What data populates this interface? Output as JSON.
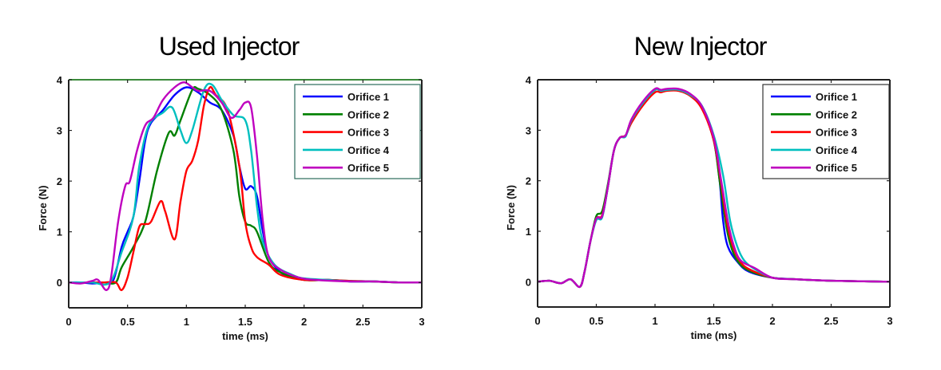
{
  "chart_data": [
    {
      "type": "line",
      "title": "Used Injector",
      "xlabel": "time (ms)",
      "ylabel": "Force (N)",
      "xlim": [
        0,
        3
      ],
      "ylim": [
        -0.5,
        4
      ],
      "xticks": [
        "0",
        "0.5",
        "1",
        "1.5",
        "2",
        "2.5",
        "3"
      ],
      "yticks": [
        "0",
        "1",
        "2",
        "3",
        "4"
      ],
      "grid": false,
      "legend_position": "upper right",
      "series": [
        {
          "name": "Orifice 1",
          "color": "#0000ff",
          "x": [
            0,
            0.1,
            0.2,
            0.3,
            0.38,
            0.45,
            0.5,
            0.55,
            0.6,
            0.65,
            0.7,
            0.8,
            0.9,
            1.0,
            1.1,
            1.2,
            1.3,
            1.4,
            1.45,
            1.5,
            1.55,
            1.6,
            1.65,
            1.7,
            1.8,
            1.9,
            2.0,
            2.2,
            2.4,
            2.6,
            2.8,
            3.0
          ],
          "y": [
            0,
            0,
            -0.02,
            0,
            0.05,
            0.7,
            1.0,
            1.3,
            2.0,
            2.8,
            3.15,
            3.4,
            3.7,
            3.85,
            3.75,
            3.55,
            3.4,
            2.9,
            2.3,
            1.85,
            1.9,
            1.7,
            1.0,
            0.5,
            0.2,
            0.1,
            0.05,
            0.05,
            0.02,
            0.02,
            0,
            0
          ]
        },
        {
          "name": "Orifice 2",
          "color": "#008000",
          "x": [
            0,
            0.1,
            0.2,
            0.3,
            0.4,
            0.45,
            0.55,
            0.65,
            0.75,
            0.85,
            0.9,
            0.95,
            1.05,
            1.1,
            1.2,
            1.3,
            1.4,
            1.45,
            1.5,
            1.55,
            1.6,
            1.7,
            1.8,
            2.0,
            2.2,
            2.4,
            2.6,
            2.8,
            3.0
          ],
          "y": [
            0,
            0,
            0,
            0,
            0,
            0.3,
            0.7,
            1.2,
            2.2,
            2.95,
            2.9,
            3.2,
            3.8,
            3.82,
            3.7,
            3.4,
            2.6,
            1.7,
            1.2,
            1.12,
            1.0,
            0.4,
            0.2,
            0.05,
            0.05,
            0.03,
            0.02,
            0,
            0
          ]
        },
        {
          "name": "Orifice 3",
          "color": "#ff0000",
          "x": [
            0,
            0.1,
            0.2,
            0.3,
            0.4,
            0.45,
            0.5,
            0.55,
            0.6,
            0.65,
            0.7,
            0.78,
            0.82,
            0.9,
            0.95,
            1.0,
            1.05,
            1.1,
            1.15,
            1.2,
            1.25,
            1.35,
            1.45,
            1.5,
            1.55,
            1.6,
            1.7,
            1.8,
            2.0,
            2.2,
            2.4,
            2.6,
            2.8,
            3.0
          ],
          "y": [
            0,
            0,
            0,
            0,
            0,
            -0.15,
            0.1,
            0.6,
            1.1,
            1.15,
            1.2,
            1.6,
            1.4,
            0.85,
            1.6,
            2.2,
            2.4,
            2.8,
            3.5,
            3.85,
            3.7,
            3.4,
            2.3,
            1.2,
            0.7,
            0.5,
            0.35,
            0.15,
            0.05,
            0.05,
            0.03,
            0.02,
            0,
            0
          ]
        },
        {
          "name": "Orifice 4",
          "color": "#00bfbf",
          "x": [
            0,
            0.1,
            0.2,
            0.35,
            0.45,
            0.55,
            0.6,
            0.68,
            0.8,
            0.88,
            0.95,
            1.0,
            1.05,
            1.15,
            1.22,
            1.3,
            1.4,
            1.5,
            1.55,
            1.6,
            1.65,
            1.75,
            1.9,
            2.0,
            2.2,
            2.4,
            2.6,
            2.8,
            3.0
          ],
          "y": [
            0,
            0,
            0,
            0,
            0.6,
            1.3,
            2.3,
            3.1,
            3.35,
            3.45,
            3.0,
            2.75,
            3.0,
            3.8,
            3.9,
            3.6,
            3.3,
            3.2,
            2.6,
            1.5,
            0.8,
            0.35,
            0.15,
            0.08,
            0.05,
            0.02,
            0.02,
            0,
            0
          ]
        },
        {
          "name": "Orifice 5",
          "color": "#bf00bf",
          "x": [
            0,
            0.1,
            0.2,
            0.25,
            0.32,
            0.36,
            0.42,
            0.48,
            0.52,
            0.58,
            0.65,
            0.72,
            0.8,
            0.9,
            0.98,
            1.05,
            1.1,
            1.2,
            1.3,
            1.38,
            1.45,
            1.5,
            1.55,
            1.6,
            1.65,
            1.7,
            1.8,
            1.95,
            2.1,
            2.4,
            2.6,
            2.8,
            3.0
          ],
          "y": [
            0,
            -0.02,
            0.03,
            0.05,
            -0.15,
            0.1,
            1.2,
            1.9,
            2.0,
            2.6,
            3.1,
            3.25,
            3.6,
            3.85,
            3.95,
            3.85,
            3.78,
            3.78,
            3.55,
            3.25,
            3.4,
            3.55,
            3.45,
            2.5,
            1.2,
            0.5,
            0.25,
            0.1,
            0.05,
            0.02,
            0.02,
            0,
            0
          ]
        }
      ]
    },
    {
      "type": "line",
      "title": "New Injector",
      "xlabel": "time (ms)",
      "ylabel": "Force (N)",
      "xlim": [
        0,
        3
      ],
      "ylim": [
        -0.5,
        4
      ],
      "xticks": [
        "0",
        "0.5",
        "1",
        "1.5",
        "2",
        "2.5",
        "3"
      ],
      "yticks": [
        "0",
        "1",
        "2",
        "3",
        "4"
      ],
      "grid": false,
      "legend_position": "upper right",
      "series": [
        {
          "name": "Orifice 1",
          "color": "#0000ff",
          "x": [
            0,
            0.1,
            0.2,
            0.28,
            0.36,
            0.4,
            0.45,
            0.5,
            0.55,
            0.6,
            0.65,
            0.7,
            0.75,
            0.8,
            0.9,
            1.0,
            1.05,
            1.1,
            1.2,
            1.3,
            1.4,
            1.5,
            1.55,
            1.58,
            1.62,
            1.7,
            1.8,
            2.0,
            2.2,
            2.5,
            3.0
          ],
          "y": [
            0,
            0.02,
            -0.03,
            0.05,
            -0.1,
            0.2,
            0.8,
            1.25,
            1.3,
            1.9,
            2.6,
            2.85,
            2.9,
            3.2,
            3.55,
            3.8,
            3.8,
            3.8,
            3.8,
            3.7,
            3.45,
            2.8,
            2.0,
            1.2,
            0.7,
            0.4,
            0.2,
            0.08,
            0.05,
            0.02,
            0
          ]
        },
        {
          "name": "Orifice 2",
          "color": "#008000",
          "x": [
            0,
            0.1,
            0.2,
            0.28,
            0.36,
            0.4,
            0.45,
            0.5,
            0.55,
            0.6,
            0.65,
            0.7,
            0.75,
            0.8,
            0.9,
            1.0,
            1.05,
            1.1,
            1.2,
            1.3,
            1.4,
            1.5,
            1.55,
            1.6,
            1.64,
            1.7,
            1.8,
            2.0,
            2.2,
            2.5,
            3.0
          ],
          "y": [
            0,
            0.02,
            -0.03,
            0.05,
            -0.1,
            0.2,
            0.8,
            1.3,
            1.4,
            1.95,
            2.6,
            2.85,
            2.9,
            3.2,
            3.55,
            3.8,
            3.78,
            3.8,
            3.8,
            3.7,
            3.45,
            2.8,
            2.0,
            1.2,
            0.75,
            0.42,
            0.22,
            0.08,
            0.05,
            0.02,
            0
          ]
        },
        {
          "name": "Orifice 3",
          "color": "#ff0000",
          "x": [
            0,
            0.1,
            0.2,
            0.28,
            0.36,
            0.4,
            0.45,
            0.5,
            0.55,
            0.6,
            0.65,
            0.7,
            0.75,
            0.8,
            0.9,
            1.0,
            1.05,
            1.1,
            1.2,
            1.3,
            1.4,
            1.5,
            1.56,
            1.61,
            1.66,
            1.72,
            1.8,
            2.0,
            2.2,
            2.5,
            3.0
          ],
          "y": [
            0,
            0.02,
            -0.03,
            0.05,
            -0.1,
            0.2,
            0.8,
            1.25,
            1.32,
            1.9,
            2.6,
            2.85,
            2.9,
            3.15,
            3.5,
            3.75,
            3.75,
            3.78,
            3.78,
            3.68,
            3.42,
            2.8,
            2.0,
            1.2,
            0.72,
            0.42,
            0.25,
            0.08,
            0.05,
            0.02,
            0
          ]
        },
        {
          "name": "Orifice 4",
          "color": "#00bfbf",
          "x": [
            0,
            0.1,
            0.2,
            0.28,
            0.36,
            0.4,
            0.45,
            0.5,
            0.55,
            0.6,
            0.65,
            0.7,
            0.75,
            0.8,
            0.9,
            1.0,
            1.05,
            1.1,
            1.2,
            1.3,
            1.4,
            1.5,
            1.58,
            1.64,
            1.7,
            1.76,
            1.85,
            2.0,
            2.2,
            2.5,
            3.0
          ],
          "y": [
            0,
            0.02,
            -0.03,
            0.05,
            -0.1,
            0.2,
            0.8,
            1.22,
            1.28,
            1.9,
            2.6,
            2.85,
            2.88,
            3.2,
            3.55,
            3.8,
            3.78,
            3.8,
            3.8,
            3.7,
            3.48,
            2.9,
            2.1,
            1.2,
            0.7,
            0.42,
            0.25,
            0.08,
            0.05,
            0.02,
            0
          ]
        },
        {
          "name": "Orifice 5",
          "color": "#bf00bf",
          "x": [
            0,
            0.1,
            0.2,
            0.28,
            0.36,
            0.4,
            0.45,
            0.5,
            0.55,
            0.6,
            0.65,
            0.7,
            0.75,
            0.8,
            0.9,
            1.0,
            1.05,
            1.1,
            1.2,
            1.3,
            1.4,
            1.5,
            1.56,
            1.62,
            1.67,
            1.73,
            1.85,
            2.0,
            2.2,
            2.5,
            3.0
          ],
          "y": [
            0,
            0.02,
            -0.03,
            0.05,
            -0.1,
            0.2,
            0.8,
            1.25,
            1.3,
            1.9,
            2.6,
            2.85,
            2.9,
            3.22,
            3.58,
            3.82,
            3.8,
            3.82,
            3.82,
            3.72,
            3.47,
            2.85,
            2.05,
            1.2,
            0.72,
            0.42,
            0.27,
            0.08,
            0.05,
            0.02,
            0
          ]
        }
      ]
    }
  ],
  "panels": [
    {
      "title": "Used Injector"
    },
    {
      "title": "New Injector"
    }
  ]
}
